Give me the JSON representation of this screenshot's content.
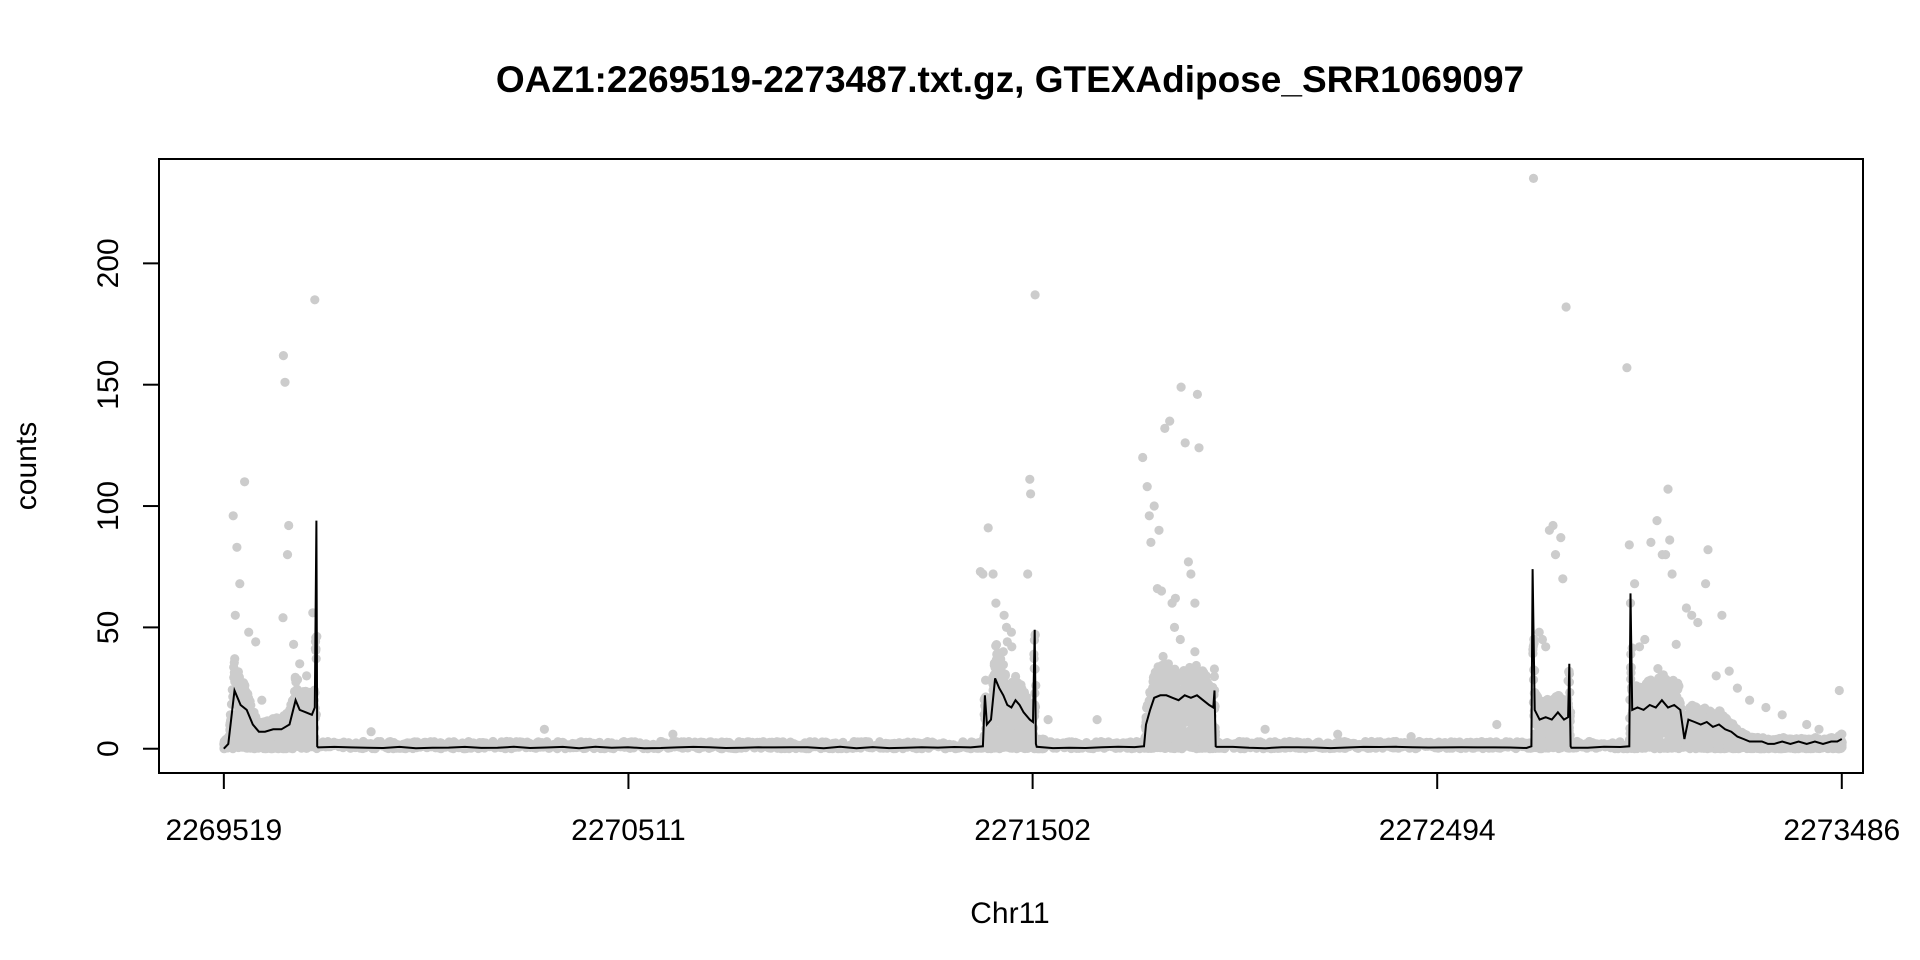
{
  "chart_data": {
    "type": "scatter",
    "title": "OAZ1:2269519-2273487.txt.gz, GTEXAdipose_SRR1069097",
    "xlabel": "Chr11",
    "ylabel": "counts",
    "xlim": [
      2269360,
      2273538
    ],
    "ylim": [
      -10,
      243
    ],
    "x_ticks": [
      2269519,
      2270511,
      2271502,
      2272494,
      2273486
    ],
    "x_tick_labels": [
      "2269519",
      "2270511",
      "2271502",
      "2272494",
      "2273486"
    ],
    "y_ticks": [
      0,
      50,
      100,
      150,
      200
    ],
    "y_tick_labels": [
      "0",
      "50",
      "100",
      "150",
      "200"
    ],
    "grid": false,
    "legend": "none",
    "point_color": "#cccccc",
    "line_color": "#000000",
    "regions": [
      {
        "start": 2269519,
        "end": 2269746,
        "line": [
          [
            2269519,
            0
          ],
          [
            2269530,
            2
          ],
          [
            2269545,
            24
          ],
          [
            2269560,
            18
          ],
          [
            2269575,
            16
          ],
          [
            2269590,
            10
          ],
          [
            2269605,
            7
          ],
          [
            2269620,
            7
          ],
          [
            2269640,
            8
          ],
          [
            2269660,
            8
          ],
          [
            2269680,
            10
          ],
          [
            2269695,
            20
          ],
          [
            2269705,
            16
          ],
          [
            2269720,
            15
          ],
          [
            2269735,
            14
          ],
          [
            2269742,
            17
          ],
          [
            2269746,
            94
          ],
          [
            2269748,
            1
          ]
        ]
      },
      {
        "start": 2271380,
        "end": 2271530,
        "line": [
          [
            2271380,
            1
          ],
          [
            2271385,
            22
          ],
          [
            2271390,
            10
          ],
          [
            2271400,
            12
          ],
          [
            2271410,
            29
          ],
          [
            2271420,
            25
          ],
          [
            2271430,
            22
          ],
          [
            2271440,
            18
          ],
          [
            2271450,
            17
          ],
          [
            2271460,
            20
          ],
          [
            2271470,
            18
          ],
          [
            2271480,
            15
          ],
          [
            2271495,
            12
          ],
          [
            2271503,
            11
          ],
          [
            2271507,
            49
          ],
          [
            2271510,
            2
          ]
        ]
      },
      {
        "start": 2271775,
        "end": 2271950,
        "line": [
          [
            2271775,
            1
          ],
          [
            2271780,
            10
          ],
          [
            2271790,
            16
          ],
          [
            2271800,
            21
          ],
          [
            2271815,
            22
          ],
          [
            2271830,
            22
          ],
          [
            2271845,
            21
          ],
          [
            2271860,
            20
          ],
          [
            2271875,
            22
          ],
          [
            2271890,
            21
          ],
          [
            2271905,
            22
          ],
          [
            2271920,
            20
          ],
          [
            2271935,
            18
          ],
          [
            2271945,
            17
          ],
          [
            2271948,
            24
          ],
          [
            2271951,
            1
          ]
        ]
      },
      {
        "start": 2272728,
        "end": 2272820,
        "line": [
          [
            2272725,
            1
          ],
          [
            2272728,
            74
          ],
          [
            2272733,
            16
          ],
          [
            2272745,
            12
          ],
          [
            2272760,
            13
          ],
          [
            2272775,
            12
          ],
          [
            2272790,
            15
          ],
          [
            2272805,
            12
          ],
          [
            2272815,
            13
          ],
          [
            2272818,
            35
          ],
          [
            2272821,
            1
          ]
        ]
      },
      {
        "start": 2272965,
        "end": 2273486,
        "line": [
          [
            2272965,
            1
          ],
          [
            2272968,
            64
          ],
          [
            2272972,
            16
          ],
          [
            2272985,
            17
          ],
          [
            2273000,
            16
          ],
          [
            2273015,
            18
          ],
          [
            2273030,
            17
          ],
          [
            2273045,
            20
          ],
          [
            2273060,
            17
          ],
          [
            2273075,
            18
          ],
          [
            2273090,
            16
          ],
          [
            2273100,
            4
          ],
          [
            2273110,
            12
          ],
          [
            2273125,
            11
          ],
          [
            2273140,
            10
          ],
          [
            2273155,
            11
          ],
          [
            2273170,
            9
          ],
          [
            2273185,
            10
          ],
          [
            2273200,
            8
          ],
          [
            2273215,
            7
          ],
          [
            2273230,
            5
          ],
          [
            2273245,
            4
          ],
          [
            2273260,
            3
          ],
          [
            2273275,
            3
          ],
          [
            2273290,
            3
          ],
          [
            2273305,
            2
          ],
          [
            2273320,
            2
          ],
          [
            2273340,
            3
          ],
          [
            2273360,
            2
          ],
          [
            2273380,
            3
          ],
          [
            2273400,
            2
          ],
          [
            2273420,
            3
          ],
          [
            2273440,
            2
          ],
          [
            2273460,
            3
          ],
          [
            2273475,
            3
          ],
          [
            2273486,
            4
          ]
        ]
      }
    ],
    "outliers": [
      [
        2269542,
        96
      ],
      [
        2269551,
        83
      ],
      [
        2269558,
        68
      ],
      [
        2269547,
        55
      ],
      [
        2269570,
        110
      ],
      [
        2269580,
        48
      ],
      [
        2269597,
        44
      ],
      [
        2269612,
        20
      ],
      [
        2269665,
        162
      ],
      [
        2269669,
        151
      ],
      [
        2269675,
        80
      ],
      [
        2269678,
        92
      ],
      [
        2269664,
        54
      ],
      [
        2269690,
        43
      ],
      [
        2269705,
        35
      ],
      [
        2269737,
        56
      ],
      [
        2269742,
        185
      ],
      [
        2269722,
        30
      ],
      [
        2269880,
        7
      ],
      [
        2270305,
        8
      ],
      [
        2270620,
        6
      ],
      [
        2271374,
        73
      ],
      [
        2271380,
        72
      ],
      [
        2271393,
        91
      ],
      [
        2271405,
        72
      ],
      [
        2271412,
        60
      ],
      [
        2271432,
        55
      ],
      [
        2271438,
        50
      ],
      [
        2271451,
        42
      ],
      [
        2271490,
        72
      ],
      [
        2271495,
        111
      ],
      [
        2271497,
        105
      ],
      [
        2271508,
        187
      ],
      [
        2271450,
        48
      ],
      [
        2271440,
        44
      ],
      [
        2271430,
        40
      ],
      [
        2271540,
        12
      ],
      [
        2271660,
        12
      ],
      [
        2271772,
        120
      ],
      [
        2271783,
        108
      ],
      [
        2271788,
        96
      ],
      [
        2271792,
        85
      ],
      [
        2271800,
        100
      ],
      [
        2271812,
        90
      ],
      [
        2271808,
        66
      ],
      [
        2271818,
        65
      ],
      [
        2271826,
        132
      ],
      [
        2271838,
        135
      ],
      [
        2271844,
        60
      ],
      [
        2271852,
        62
      ],
      [
        2271866,
        149
      ],
      [
        2271876,
        126
      ],
      [
        2271884,
        77
      ],
      [
        2271890,
        72
      ],
      [
        2271900,
        60
      ],
      [
        2271906,
        146
      ],
      [
        2271910,
        124
      ],
      [
        2271850,
        50
      ],
      [
        2271864,
        45
      ],
      [
        2271822,
        38
      ],
      [
        2271900,
        40
      ],
      [
        2271835,
        35
      ],
      [
        2272072,
        8
      ],
      [
        2272250,
        6
      ],
      [
        2272430,
        5
      ],
      [
        2272640,
        10
      ],
      [
        2272730,
        235
      ],
      [
        2272744,
        48
      ],
      [
        2272752,
        45
      ],
      [
        2272760,
        42
      ],
      [
        2272769,
        90
      ],
      [
        2272778,
        92
      ],
      [
        2272784,
        80
      ],
      [
        2272797,
        87
      ],
      [
        2272802,
        70
      ],
      [
        2272810,
        182
      ],
      [
        2272815,
        28
      ],
      [
        2272959,
        157
      ],
      [
        2272965,
        84
      ],
      [
        2272968,
        60
      ],
      [
        2272978,
        68
      ],
      [
        2272990,
        42
      ],
      [
        2273003,
        45
      ],
      [
        2273018,
        85
      ],
      [
        2273033,
        94
      ],
      [
        2273046,
        80
      ],
      [
        2273054,
        80
      ],
      [
        2273064,
        86
      ],
      [
        2273060,
        107
      ],
      [
        2273070,
        72
      ],
      [
        2273080,
        43
      ],
      [
        2273044,
        30
      ],
      [
        2273035,
        33
      ],
      [
        2273105,
        58
      ],
      [
        2273118,
        55
      ],
      [
        2273133,
        52
      ],
      [
        2273152,
        68
      ],
      [
        2273158,
        82
      ],
      [
        2273178,
        30
      ],
      [
        2273192,
        55
      ],
      [
        2273210,
        32
      ],
      [
        2273230,
        25
      ],
      [
        2273260,
        20
      ],
      [
        2273300,
        17
      ],
      [
        2273340,
        14
      ],
      [
        2273400,
        10
      ],
      [
        2273430,
        8
      ],
      [
        2273480,
        24
      ]
    ]
  }
}
